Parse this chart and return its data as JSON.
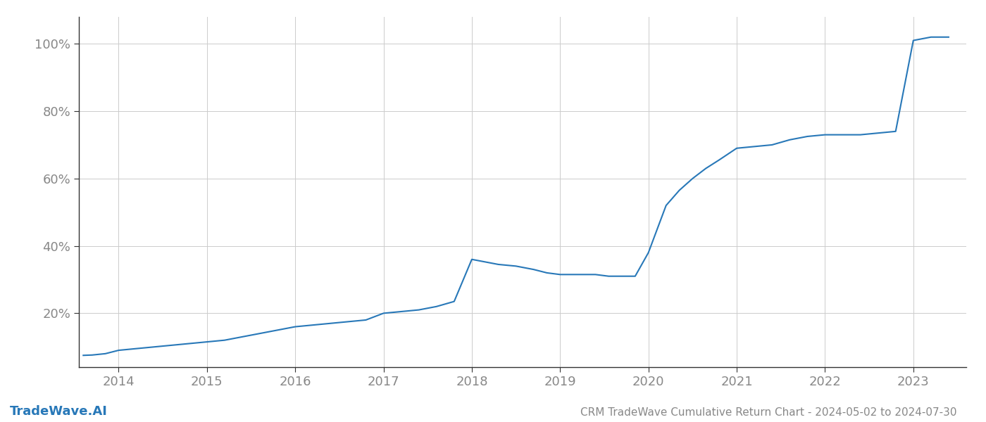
{
  "title": "CRM TradeWave Cumulative Return Chart - 2024-05-02 to 2024-07-30",
  "watermark": "TradeWave.AI",
  "line_color": "#2878b8",
  "background_color": "#ffffff",
  "grid_color": "#cccccc",
  "text_color": "#888888",
  "spine_color": "#333333",
  "x_values": [
    2013.6,
    2013.7,
    2013.85,
    2014.0,
    2014.2,
    2014.4,
    2014.6,
    2014.8,
    2015.0,
    2015.2,
    2015.4,
    2015.6,
    2015.8,
    2016.0,
    2016.2,
    2016.4,
    2016.6,
    2016.8,
    2017.0,
    2017.2,
    2017.4,
    2017.6,
    2017.8,
    2018.0,
    2018.1,
    2018.2,
    2018.3,
    2018.5,
    2018.7,
    2018.85,
    2019.0,
    2019.2,
    2019.4,
    2019.55,
    2019.7,
    2019.85,
    2020.0,
    2020.1,
    2020.2,
    2020.35,
    2020.5,
    2020.65,
    2020.8,
    2021.0,
    2021.2,
    2021.4,
    2021.6,
    2021.8,
    2022.0,
    2022.2,
    2022.4,
    2022.6,
    2022.8,
    2023.0,
    2023.2,
    2023.4
  ],
  "y_values": [
    0.075,
    0.076,
    0.08,
    0.09,
    0.095,
    0.1,
    0.105,
    0.11,
    0.115,
    0.12,
    0.13,
    0.14,
    0.15,
    0.16,
    0.165,
    0.17,
    0.175,
    0.18,
    0.2,
    0.205,
    0.21,
    0.22,
    0.235,
    0.36,
    0.355,
    0.35,
    0.345,
    0.34,
    0.33,
    0.32,
    0.315,
    0.315,
    0.315,
    0.31,
    0.31,
    0.31,
    0.38,
    0.45,
    0.52,
    0.565,
    0.6,
    0.63,
    0.655,
    0.69,
    0.695,
    0.7,
    0.715,
    0.725,
    0.73,
    0.73,
    0.73,
    0.735,
    0.74,
    1.01,
    1.02,
    1.02
  ],
  "xlim": [
    2013.55,
    2023.6
  ],
  "ylim": [
    0.04,
    1.08
  ],
  "xticks": [
    2014,
    2015,
    2016,
    2017,
    2018,
    2019,
    2020,
    2021,
    2022,
    2023
  ],
  "yticks": [
    0.2,
    0.4,
    0.6,
    0.8,
    1.0
  ],
  "ytick_labels": [
    "20%",
    "40%",
    "60%",
    "80%",
    "100%"
  ],
  "watermark_fontsize": 13,
  "title_fontsize": 11,
  "tick_fontsize": 13
}
